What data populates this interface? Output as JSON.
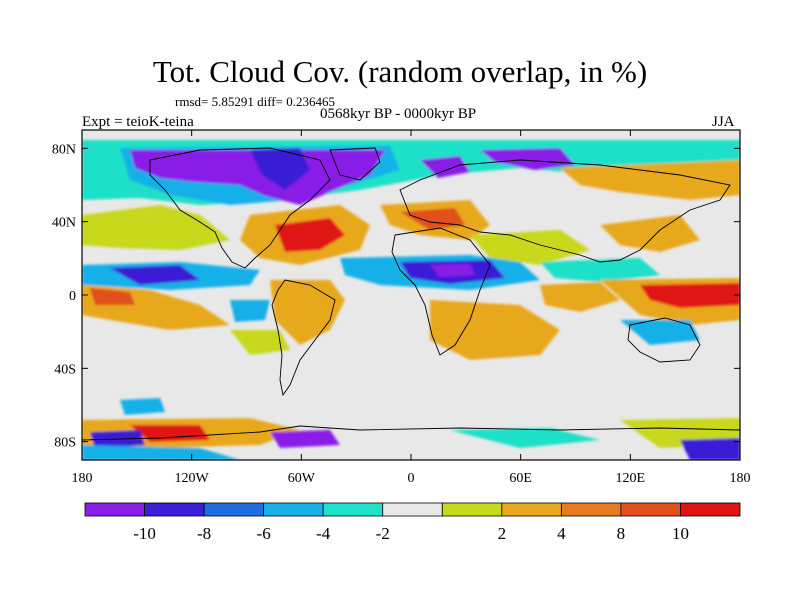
{
  "title": "Tot. Cloud Cov. (random overlap, in %)",
  "stats": "rmsd= 5.85291 diff= 0.236465",
  "experiment": "Expt = teioK-teina",
  "period": "0568kyr BP - 0000kyr BP",
  "season": "JJA",
  "map": {
    "lon_ticks": [
      {
        "value": -180,
        "label": "180"
      },
      {
        "value": -120,
        "label": "120W"
      },
      {
        "value": -60,
        "label": "60W"
      },
      {
        "value": 0,
        "label": "0"
      },
      {
        "value": 60,
        "label": "60E"
      },
      {
        "value": 120,
        "label": "120E"
      },
      {
        "value": 180,
        "label": "180"
      }
    ],
    "lat_ticks": [
      {
        "value": 80,
        "label": "80N"
      },
      {
        "value": 40,
        "label": "40N"
      },
      {
        "value": 0,
        "label": "0"
      },
      {
        "value": -40,
        "label": "40S"
      },
      {
        "value": -80,
        "label": "80S"
      }
    ],
    "lon_range": [
      -180,
      180
    ],
    "lat_range": [
      -90,
      90
    ]
  },
  "colorbar": {
    "colors": [
      "#8a1fe8",
      "#3a1fd6",
      "#1f6de0",
      "#17b0e8",
      "#1fe0c8",
      "#e8e8e8",
      "#c8d81f",
      "#e8a81f",
      "#e87a1f",
      "#e0501a",
      "#e01414"
    ],
    "labels": [
      "-10",
      "-8",
      "-6",
      "-4",
      "-2",
      "2",
      "4",
      "8",
      "10"
    ]
  }
}
